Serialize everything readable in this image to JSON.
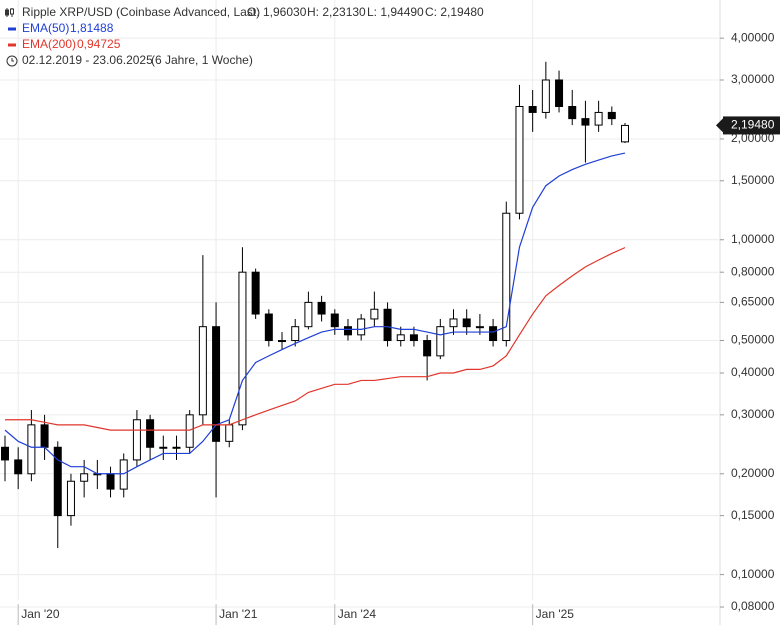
{
  "chart_data": {
    "type": "candlestick",
    "title": "Ripple XRP/USD (Coinbase Advanced, Last)",
    "ohlc_labels": [
      "O: 1,96030",
      "H: 2,23130",
      "L: 1,94490",
      "C: 2,19480"
    ],
    "date_range": "02.12.2019 - 23.06.2025",
    "duration": "(6 Jahre, 1 Woche)",
    "last_price_label": "2,19480",
    "log_scale": true,
    "grid": true,
    "up_color": "#ffffff",
    "down_color": "#000000",
    "wick_color": "#000000",
    "categories": [
      null,
      "Jan '20",
      null,
      null,
      null,
      null,
      null,
      null,
      null,
      null,
      null,
      null,
      null,
      null,
      null,
      null,
      "Jan '21",
      null,
      null,
      null,
      null,
      null,
      null,
      null,
      null,
      "Jan '24",
      null,
      null,
      null,
      null,
      null,
      null,
      null,
      null,
      null,
      null,
      null,
      null,
      null,
      null,
      "Jan '25",
      null,
      null,
      null,
      null,
      null,
      null,
      null
    ],
    "open": [
      0.24,
      0.22,
      0.2,
      0.28,
      0.24,
      0.15,
      0.19,
      0.2,
      0.2,
      0.18,
      0.22,
      0.29,
      0.24,
      0.24,
      0.24,
      0.3,
      0.55,
      0.25,
      0.28,
      0.8,
      0.6,
      0.5,
      0.5,
      0.55,
      0.65,
      0.6,
      0.55,
      0.52,
      0.58,
      0.62,
      0.5,
      0.52,
      0.5,
      0.45,
      0.55,
      0.58,
      0.55,
      0.55,
      0.5,
      1.2,
      2.5,
      2.4,
      3.0,
      2.5,
      2.3,
      2.2,
      2.4,
      1.9603
    ],
    "high": [
      0.26,
      0.24,
      0.31,
      0.3,
      0.25,
      0.2,
      0.22,
      0.22,
      0.21,
      0.23,
      0.31,
      0.3,
      0.26,
      0.26,
      0.31,
      0.9,
      0.65,
      0.29,
      0.95,
      0.82,
      0.62,
      0.53,
      0.58,
      0.7,
      0.68,
      0.62,
      0.58,
      0.6,
      0.7,
      0.65,
      0.55,
      0.55,
      0.52,
      0.58,
      0.62,
      0.62,
      0.6,
      0.58,
      1.3,
      2.9,
      2.8,
      3.4,
      3.2,
      2.8,
      2.6,
      2.6,
      2.5,
      2.2313
    ],
    "low": [
      0.19,
      0.18,
      0.19,
      0.22,
      0.12,
      0.14,
      0.17,
      0.18,
      0.17,
      0.17,
      0.21,
      0.22,
      0.22,
      0.22,
      0.23,
      0.28,
      0.17,
      0.24,
      0.27,
      0.58,
      0.48,
      0.47,
      0.48,
      0.54,
      0.57,
      0.52,
      0.5,
      0.5,
      0.55,
      0.48,
      0.48,
      0.48,
      0.38,
      0.44,
      0.52,
      0.52,
      0.52,
      0.48,
      0.48,
      1.15,
      2.1,
      2.3,
      2.4,
      2.2,
      1.7,
      2.1,
      2.2,
      1.9449
    ],
    "close": [
      0.22,
      0.2,
      0.28,
      0.24,
      0.15,
      0.19,
      0.2,
      0.2,
      0.18,
      0.22,
      0.29,
      0.24,
      0.24,
      0.24,
      0.3,
      0.55,
      0.25,
      0.28,
      0.8,
      0.6,
      0.5,
      0.5,
      0.55,
      0.65,
      0.6,
      0.55,
      0.52,
      0.58,
      0.62,
      0.5,
      0.52,
      0.5,
      0.45,
      0.55,
      0.58,
      0.55,
      0.55,
      0.5,
      1.2,
      2.5,
      2.4,
      3.0,
      2.5,
      2.3,
      2.2,
      2.4,
      2.3,
      2.1948
    ],
    "series": [
      {
        "name": "EMA(50)",
        "color": "#1f3fd6",
        "last_value_label": "1,81488",
        "values": [
          0.27,
          0.25,
          0.24,
          0.24,
          0.22,
          0.21,
          0.21,
          0.2,
          0.2,
          0.2,
          0.21,
          0.22,
          0.23,
          0.23,
          0.23,
          0.25,
          0.28,
          0.29,
          0.38,
          0.43,
          0.45,
          0.47,
          0.49,
          0.51,
          0.53,
          0.54,
          0.54,
          0.54,
          0.55,
          0.55,
          0.54,
          0.54,
          0.53,
          0.52,
          0.53,
          0.53,
          0.53,
          0.53,
          0.55,
          0.95,
          1.25,
          1.45,
          1.55,
          1.62,
          1.68,
          1.73,
          1.78,
          1.81488
        ]
      },
      {
        "name": "EMA(200)",
        "color": "#e0362b",
        "last_value_label": "0,94725",
        "values": [
          0.29,
          0.29,
          0.29,
          0.285,
          0.28,
          0.28,
          0.28,
          0.275,
          0.27,
          0.27,
          0.27,
          0.27,
          0.27,
          0.27,
          0.27,
          0.28,
          0.28,
          0.28,
          0.29,
          0.3,
          0.31,
          0.32,
          0.33,
          0.35,
          0.36,
          0.37,
          0.37,
          0.38,
          0.38,
          0.385,
          0.39,
          0.39,
          0.39,
          0.4,
          0.4,
          0.41,
          0.41,
          0.42,
          0.45,
          0.52,
          0.6,
          0.68,
          0.73,
          0.78,
          0.83,
          0.87,
          0.91,
          0.94725
        ]
      }
    ],
    "ylim": [
      0.0707,
      5.2
    ],
    "yticks": [
      {
        "value": 4,
        "label": "4,00000"
      },
      {
        "value": 3,
        "label": "3,00000"
      },
      {
        "value": 2,
        "label": "2,00000"
      },
      {
        "value": 1.5,
        "label": "1,50000"
      },
      {
        "value": 1,
        "label": "1,00000"
      },
      {
        "value": 0.8,
        "label": "0,80000"
      },
      {
        "value": 0.65,
        "label": "0,65000"
      },
      {
        "value": 0.5,
        "label": "0,50000"
      },
      {
        "value": 0.4,
        "label": "0,40000"
      },
      {
        "value": 0.3,
        "label": "0,30000"
      },
      {
        "value": 0.2,
        "label": "0,20000"
      },
      {
        "value": 0.15,
        "label": "0,15000"
      },
      {
        "value": 0.1,
        "label": "0,10000"
      },
      {
        "value": 0.08,
        "label": "0,08000"
      }
    ]
  }
}
